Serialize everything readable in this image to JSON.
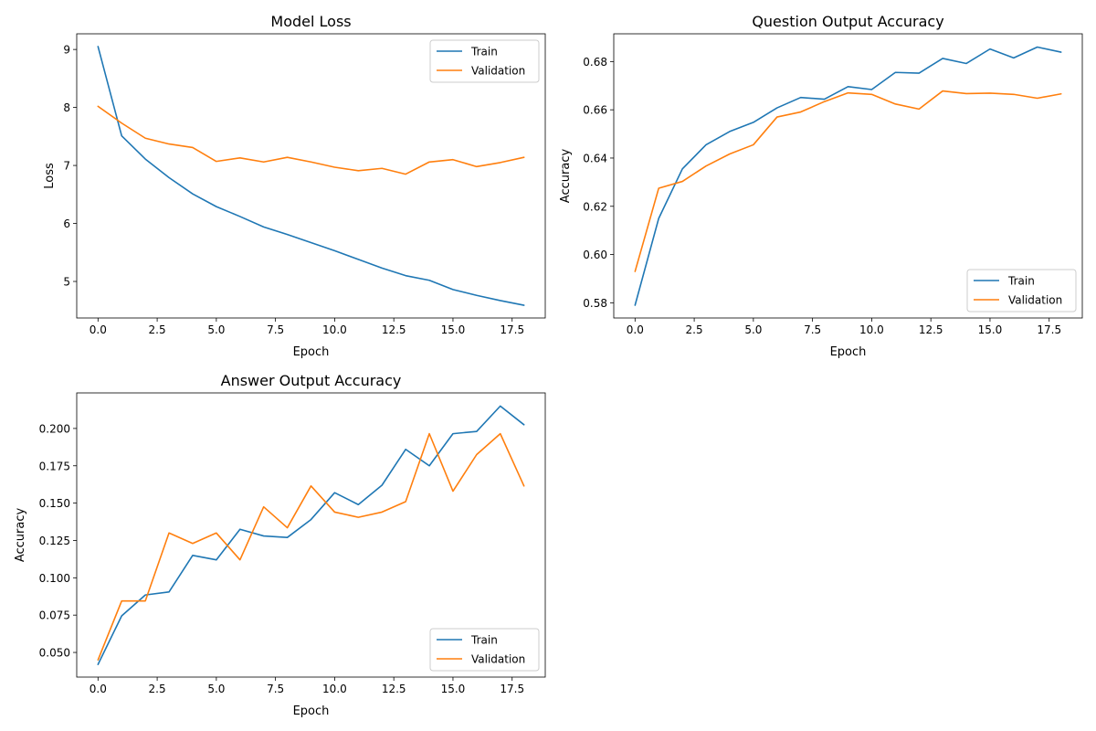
{
  "chart_data": [
    {
      "type": "line",
      "title": "Model Loss",
      "xlabel": "Epoch",
      "ylabel": "Loss",
      "xlim": [
        -0.9,
        18.9
      ],
      "ylim": [
        4.37,
        9.27
      ],
      "xticks": [
        0,
        2.5,
        5,
        7.5,
        10,
        12.5,
        15,
        17.5
      ],
      "xtick_labels": [
        "0.0",
        "2.5",
        "5.0",
        "7.5",
        "10.0",
        "12.5",
        "15.0",
        "17.5"
      ],
      "yticks": [
        5,
        6,
        7,
        8,
        9
      ],
      "ytick_labels": [
        "5",
        "6",
        "7",
        "8",
        "9"
      ],
      "legend_position": "top-right",
      "grid": false,
      "x": [
        0,
        1,
        2,
        3,
        4,
        5,
        6,
        7,
        8,
        9,
        10,
        11,
        12,
        13,
        14,
        15,
        16,
        17,
        18
      ],
      "series": [
        {
          "name": "Train",
          "color": "#1f77b4",
          "values": [
            9.05,
            7.51,
            7.11,
            6.79,
            6.51,
            6.29,
            6.12,
            5.94,
            5.81,
            5.67,
            5.53,
            5.38,
            5.23,
            5.1,
            5.02,
            4.86,
            4.76,
            4.67,
            4.59
          ]
        },
        {
          "name": "Validation",
          "color": "#ff7f0e",
          "values": [
            8.02,
            7.73,
            7.47,
            7.37,
            7.31,
            7.07,
            7.13,
            7.06,
            7.14,
            7.06,
            6.97,
            6.91,
            6.95,
            6.85,
            7.06,
            7.1,
            6.98,
            7.05,
            7.14
          ]
        }
      ]
    },
    {
      "type": "line",
      "title": "Question Output Accuracy",
      "xlabel": "Epoch",
      "ylabel": "Accuracy",
      "xlim": [
        -0.9,
        18.9
      ],
      "ylim": [
        0.5737,
        0.6915
      ],
      "xticks": [
        0,
        2.5,
        5,
        7.5,
        10,
        12.5,
        15,
        17.5
      ],
      "xtick_labels": [
        "0.0",
        "2.5",
        "5.0",
        "7.5",
        "10.0",
        "12.5",
        "15.0",
        "17.5"
      ],
      "yticks": [
        0.58,
        0.6,
        0.62,
        0.64,
        0.66,
        0.68
      ],
      "ytick_labels": [
        "0.58",
        "0.60",
        "0.62",
        "0.64",
        "0.66",
        "0.68"
      ],
      "legend_position": "bottom-right",
      "grid": false,
      "x": [
        0,
        1,
        2,
        3,
        4,
        5,
        6,
        7,
        8,
        9,
        10,
        11,
        12,
        13,
        14,
        15,
        16,
        17,
        18
      ],
      "series": [
        {
          "name": "Train",
          "color": "#1f77b4",
          "values": [
            0.579,
            0.615,
            0.6355,
            0.6455,
            0.651,
            0.6548,
            0.6608,
            0.6651,
            0.6644,
            0.6696,
            0.6684,
            0.6755,
            0.6752,
            0.6813,
            0.6792,
            0.6852,
            0.6815,
            0.686,
            0.6839
          ]
        },
        {
          "name": "Validation",
          "color": "#ff7f0e",
          "values": [
            0.593,
            0.6275,
            0.6303,
            0.6367,
            0.6417,
            0.6455,
            0.657,
            0.6591,
            0.6634,
            0.667,
            0.6664,
            0.6624,
            0.6603,
            0.6678,
            0.6667,
            0.6669,
            0.6664,
            0.6648,
            0.6666
          ]
        }
      ]
    },
    {
      "type": "line",
      "title": "Answer Output Accuracy",
      "xlabel": "Epoch",
      "ylabel": "Accuracy",
      "xlim": [
        -0.9,
        18.9
      ],
      "ylim": [
        0.0335,
        0.2238
      ],
      "xticks": [
        0,
        2.5,
        5,
        7.5,
        10,
        12.5,
        15,
        17.5
      ],
      "xtick_labels": [
        "0.0",
        "2.5",
        "5.0",
        "7.5",
        "10.0",
        "12.5",
        "15.0",
        "17.5"
      ],
      "yticks": [
        0.05,
        0.075,
        0.1,
        0.125,
        0.15,
        0.175,
        0.2
      ],
      "ytick_labels": [
        "0.050",
        "0.075",
        "0.100",
        "0.125",
        "0.150",
        "0.175",
        "0.200"
      ],
      "legend_position": "bottom-right",
      "grid": false,
      "x": [
        0,
        1,
        2,
        3,
        4,
        5,
        6,
        7,
        8,
        9,
        10,
        11,
        12,
        13,
        14,
        15,
        16,
        17,
        18
      ],
      "series": [
        {
          "name": "Train",
          "color": "#1f77b4",
          "values": [
            0.042,
            0.0745,
            0.0885,
            0.0905,
            0.115,
            0.112,
            0.1325,
            0.128,
            0.127,
            0.139,
            0.157,
            0.149,
            0.162,
            0.186,
            0.175,
            0.1965,
            0.198,
            0.215,
            0.2025
          ]
        },
        {
          "name": "Validation",
          "color": "#ff7f0e",
          "values": [
            0.045,
            0.0845,
            0.0845,
            0.13,
            0.123,
            0.13,
            0.112,
            0.1475,
            0.1335,
            0.1615,
            0.144,
            0.1405,
            0.144,
            0.151,
            0.1965,
            0.158,
            0.1825,
            0.1965,
            0.1615
          ]
        }
      ]
    }
  ]
}
